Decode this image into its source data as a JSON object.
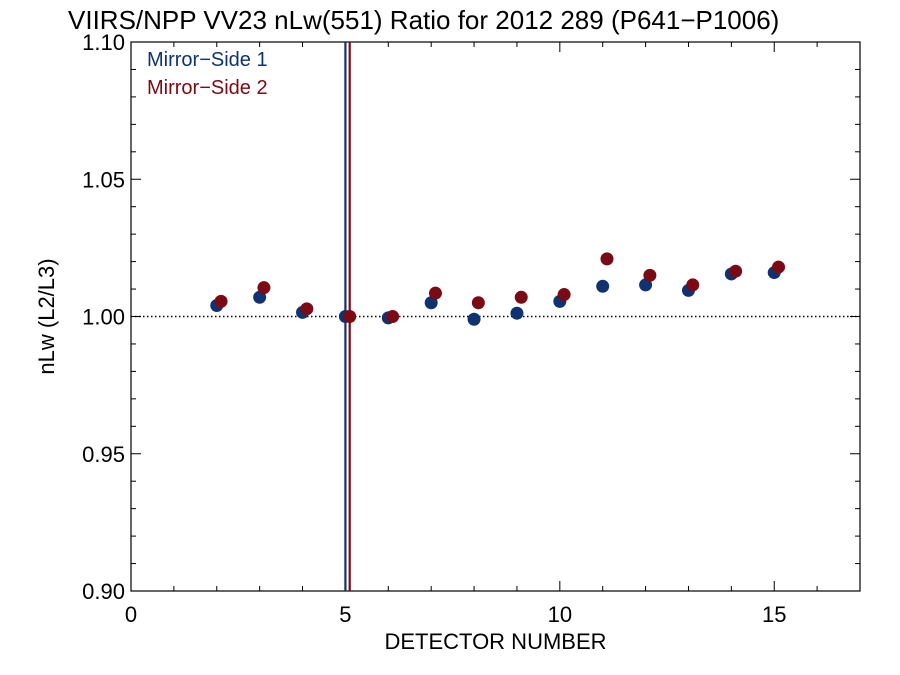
{
  "chart_data": {
    "type": "scatter",
    "title": "VIIRS/NPP VV23 nLw(551) Ratio for 2012 289 (P641−P1006)",
    "xlabel": "DETECTOR NUMBER",
    "ylabel": "nLw (L2/L3)",
    "xlim": [
      0,
      17
    ],
    "ylim": [
      0.9,
      1.1
    ],
    "x_ticks": [
      0,
      5,
      10,
      15
    ],
    "y_ticks": [
      0.9,
      0.95,
      1.0,
      1.05,
      1.1
    ],
    "x_tick_labels": [
      "0",
      "5",
      "10",
      "15"
    ],
    "y_tick_labels": [
      "0.90",
      "0.95",
      "1.00",
      "1.05",
      "1.10"
    ],
    "reference_line_y": 1.0,
    "grid": false,
    "legend_position": "top-left",
    "series": [
      {
        "name": "Mirror−Side 1",
        "color": "#0f3370",
        "x": [
          2,
          3,
          4,
          5,
          6,
          7,
          8,
          9,
          10,
          11,
          12,
          13,
          14,
          15
        ],
        "y": [
          1.004,
          1.007,
          1.0015,
          1.0,
          0.9995,
          1.005,
          0.999,
          1.0012,
          1.0055,
          1.011,
          1.0115,
          1.0095,
          1.0155,
          1.016
        ],
        "vertical_line_x": 5.0
      },
      {
        "name": "Mirror−Side 2",
        "color": "#7a0a14",
        "x": [
          2.1,
          3.1,
          4.1,
          5.1,
          6.1,
          7.1,
          8.1,
          9.1,
          10.1,
          11.1,
          12.1,
          13.1,
          14.1,
          15.1
        ],
        "y": [
          1.0055,
          1.0105,
          1.0028,
          1.0,
          1.0,
          1.0085,
          1.005,
          1.007,
          1.008,
          1.021,
          1.015,
          1.0115,
          1.0165,
          1.018
        ],
        "vertical_line_x": 5.1
      }
    ]
  }
}
